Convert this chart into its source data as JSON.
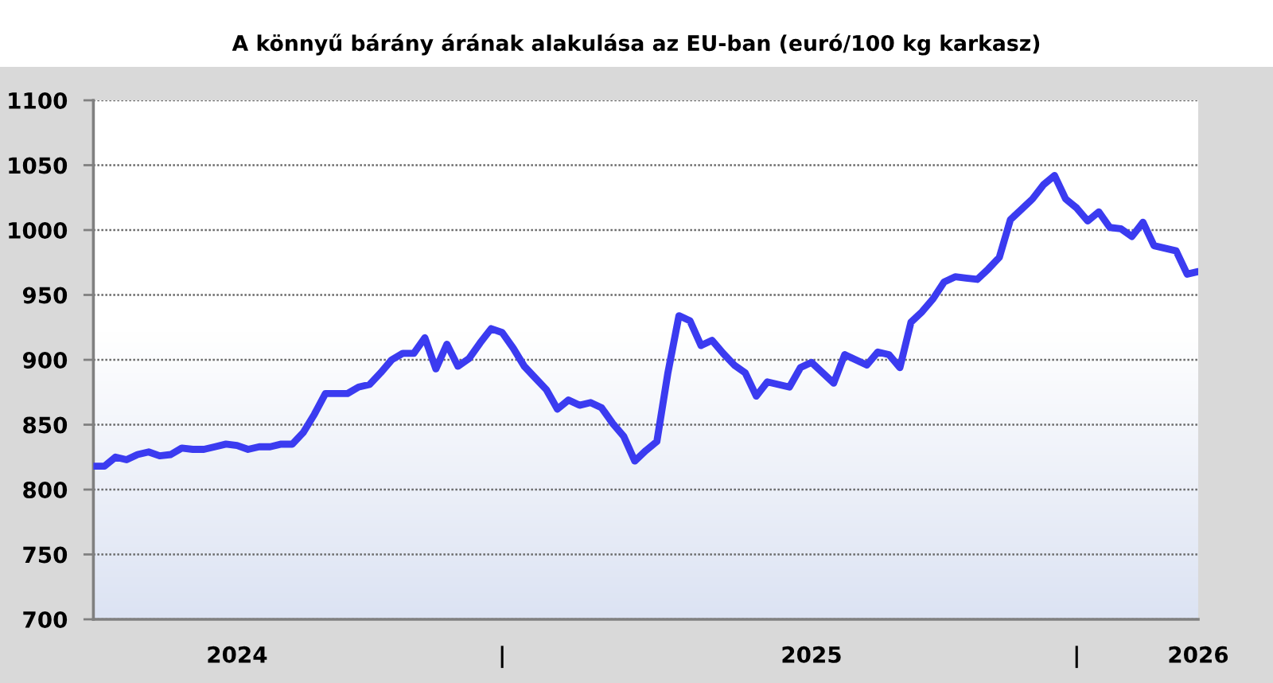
{
  "chart_data": {
    "type": "line",
    "title": "A könnyű bárány árának alakulása az EU-ban (euró/100 kg karkasz)",
    "categories": [
      null,
      null,
      null,
      null,
      null,
      null,
      null,
      null,
      null,
      null,
      null,
      null,
      null,
      "2024",
      null,
      null,
      null,
      null,
      null,
      null,
      null,
      null,
      null,
      null,
      null,
      null,
      null,
      null,
      null,
      null,
      null,
      null,
      null,
      null,
      null,
      null,
      null,
      "|",
      null,
      null,
      null,
      null,
      null,
      null,
      null,
      null,
      null,
      null,
      null,
      null,
      null,
      null,
      null,
      null,
      null,
      null,
      null,
      null,
      null,
      null,
      null,
      null,
      null,
      null,
      null,
      "2025",
      null,
      null,
      null,
      null,
      null,
      null,
      null,
      null,
      null,
      null,
      null,
      null,
      null,
      null,
      null,
      null,
      null,
      null,
      null,
      null,
      null,
      null,
      null,
      "|",
      null,
      null,
      null,
      null,
      null,
      null,
      null,
      null,
      null,
      null,
      "2026"
    ],
    "series": [
      {
        "color": "#3b3bf0",
        "values": [
          818,
          818,
          825,
          823,
          827,
          829,
          826,
          827,
          832,
          831,
          831,
          833,
          835,
          834,
          831,
          833,
          833,
          835,
          835,
          844,
          858,
          874,
          874,
          874,
          879,
          881,
          890,
          900,
          905,
          905,
          917,
          893,
          912,
          895,
          901,
          913,
          924,
          921,
          909,
          895,
          886,
          877,
          862,
          869,
          865,
          867,
          863,
          851,
          841,
          822,
          830,
          837,
          890,
          934,
          930,
          911,
          915,
          905,
          896,
          890,
          872,
          883,
          881,
          879,
          894,
          898,
          890,
          882,
          904,
          900,
          896,
          906,
          904,
          894,
          929,
          937,
          947,
          960,
          964,
          963,
          962,
          970,
          979,
          1008,
          1016,
          1024,
          1035,
          1042,
          1024,
          1017,
          1007,
          1014,
          1002,
          1001,
          995,
          1006,
          988,
          986,
          984,
          966,
          968
        ]
      }
    ],
    "ylim": [
      700,
      1100
    ],
    "yticks": [
      700,
      750,
      800,
      850,
      900,
      950,
      1000,
      1050,
      1100
    ],
    "grid": "y"
  }
}
